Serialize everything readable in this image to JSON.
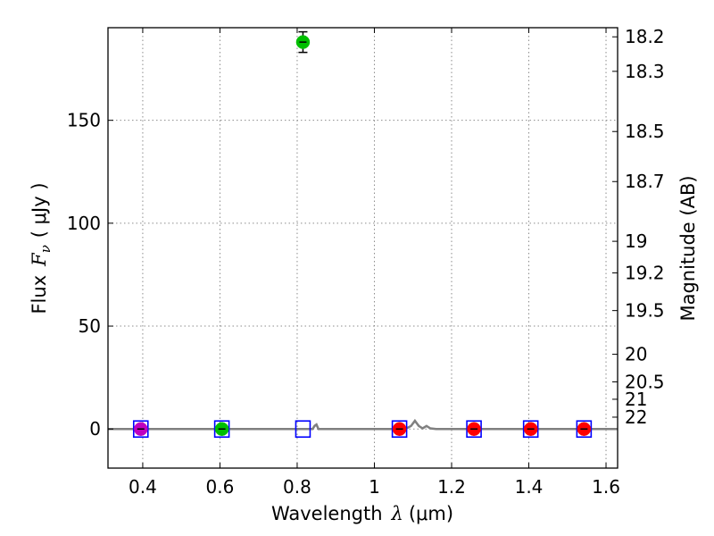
{
  "chart_data": {
    "type": "scatter",
    "xlabel": {
      "prefix": "Wavelength",
      "symbol": "λ",
      "unit": "(μm)"
    },
    "ylabel": {
      "prefix": "Flux",
      "symbol": "F",
      "subscript": "ν",
      "unit": "( μJy )"
    },
    "y2label": "Magnitude (AB)",
    "xlim": [
      0.31,
      1.63
    ],
    "ylim": [
      -19,
      195
    ],
    "xticks": [
      0.4,
      0.6,
      0.8,
      1.0,
      1.2,
      1.4,
      1.6
    ],
    "xtick_labels": [
      "0.4",
      "0.6",
      "0.8",
      "1",
      "1.2",
      "1.4",
      "1.6"
    ],
    "yticks": [
      0,
      50,
      100,
      150
    ],
    "ytick_labels": [
      "0",
      "50",
      "100",
      "150"
    ],
    "y2ticks": [
      "18.2",
      "18.3",
      "18.5",
      "18.7",
      "19",
      "19.2",
      "19.5",
      "20",
      "20.5",
      "21",
      "22"
    ],
    "grid": true,
    "observed_points": [
      {
        "x": 0.395,
        "y": 0.0,
        "err": 0.4,
        "color": "#bf00bf"
      },
      {
        "x": 0.605,
        "y": 0.0,
        "err": 0.4,
        "color": "#00bf00"
      },
      {
        "x": 0.815,
        "y": 188.0,
        "err": 5.0,
        "color": "#00bf00"
      },
      {
        "x": 1.065,
        "y": 0.0,
        "err": 0.4,
        "color": "#ff0000"
      },
      {
        "x": 1.258,
        "y": 0.0,
        "err": 0.4,
        "color": "#ff0000"
      },
      {
        "x": 1.405,
        "y": 0.0,
        "err": 0.4,
        "color": "#ff0000"
      },
      {
        "x": 1.543,
        "y": 0.0,
        "err": 0.4,
        "color": "#ff0000"
      }
    ],
    "model_points": [
      {
        "x": 0.395,
        "y": 0.0
      },
      {
        "x": 0.605,
        "y": 0.0
      },
      {
        "x": 0.815,
        "y": 0.0
      },
      {
        "x": 1.065,
        "y": 0.0
      },
      {
        "x": 1.258,
        "y": 0.0
      },
      {
        "x": 1.405,
        "y": 0.0
      },
      {
        "x": 1.543,
        "y": 0.0
      }
    ],
    "model_spectrum": {
      "x": [
        0.31,
        0.84,
        0.845,
        0.85,
        0.855,
        1.08,
        1.095,
        1.105,
        1.115,
        1.125,
        1.135,
        1.145,
        1.16,
        1.63
      ],
      "y": [
        0.0,
        0.0,
        1.5,
        2.2,
        0.0,
        0.0,
        1.5,
        4.0,
        1.5,
        0.3,
        1.5,
        0.3,
        0.0,
        0.0
      ]
    },
    "colors": {
      "model_marker": "#0000ff",
      "spectrum": "#808080",
      "grid": "#8c8c8c",
      "errorbar": "#000000"
    }
  }
}
